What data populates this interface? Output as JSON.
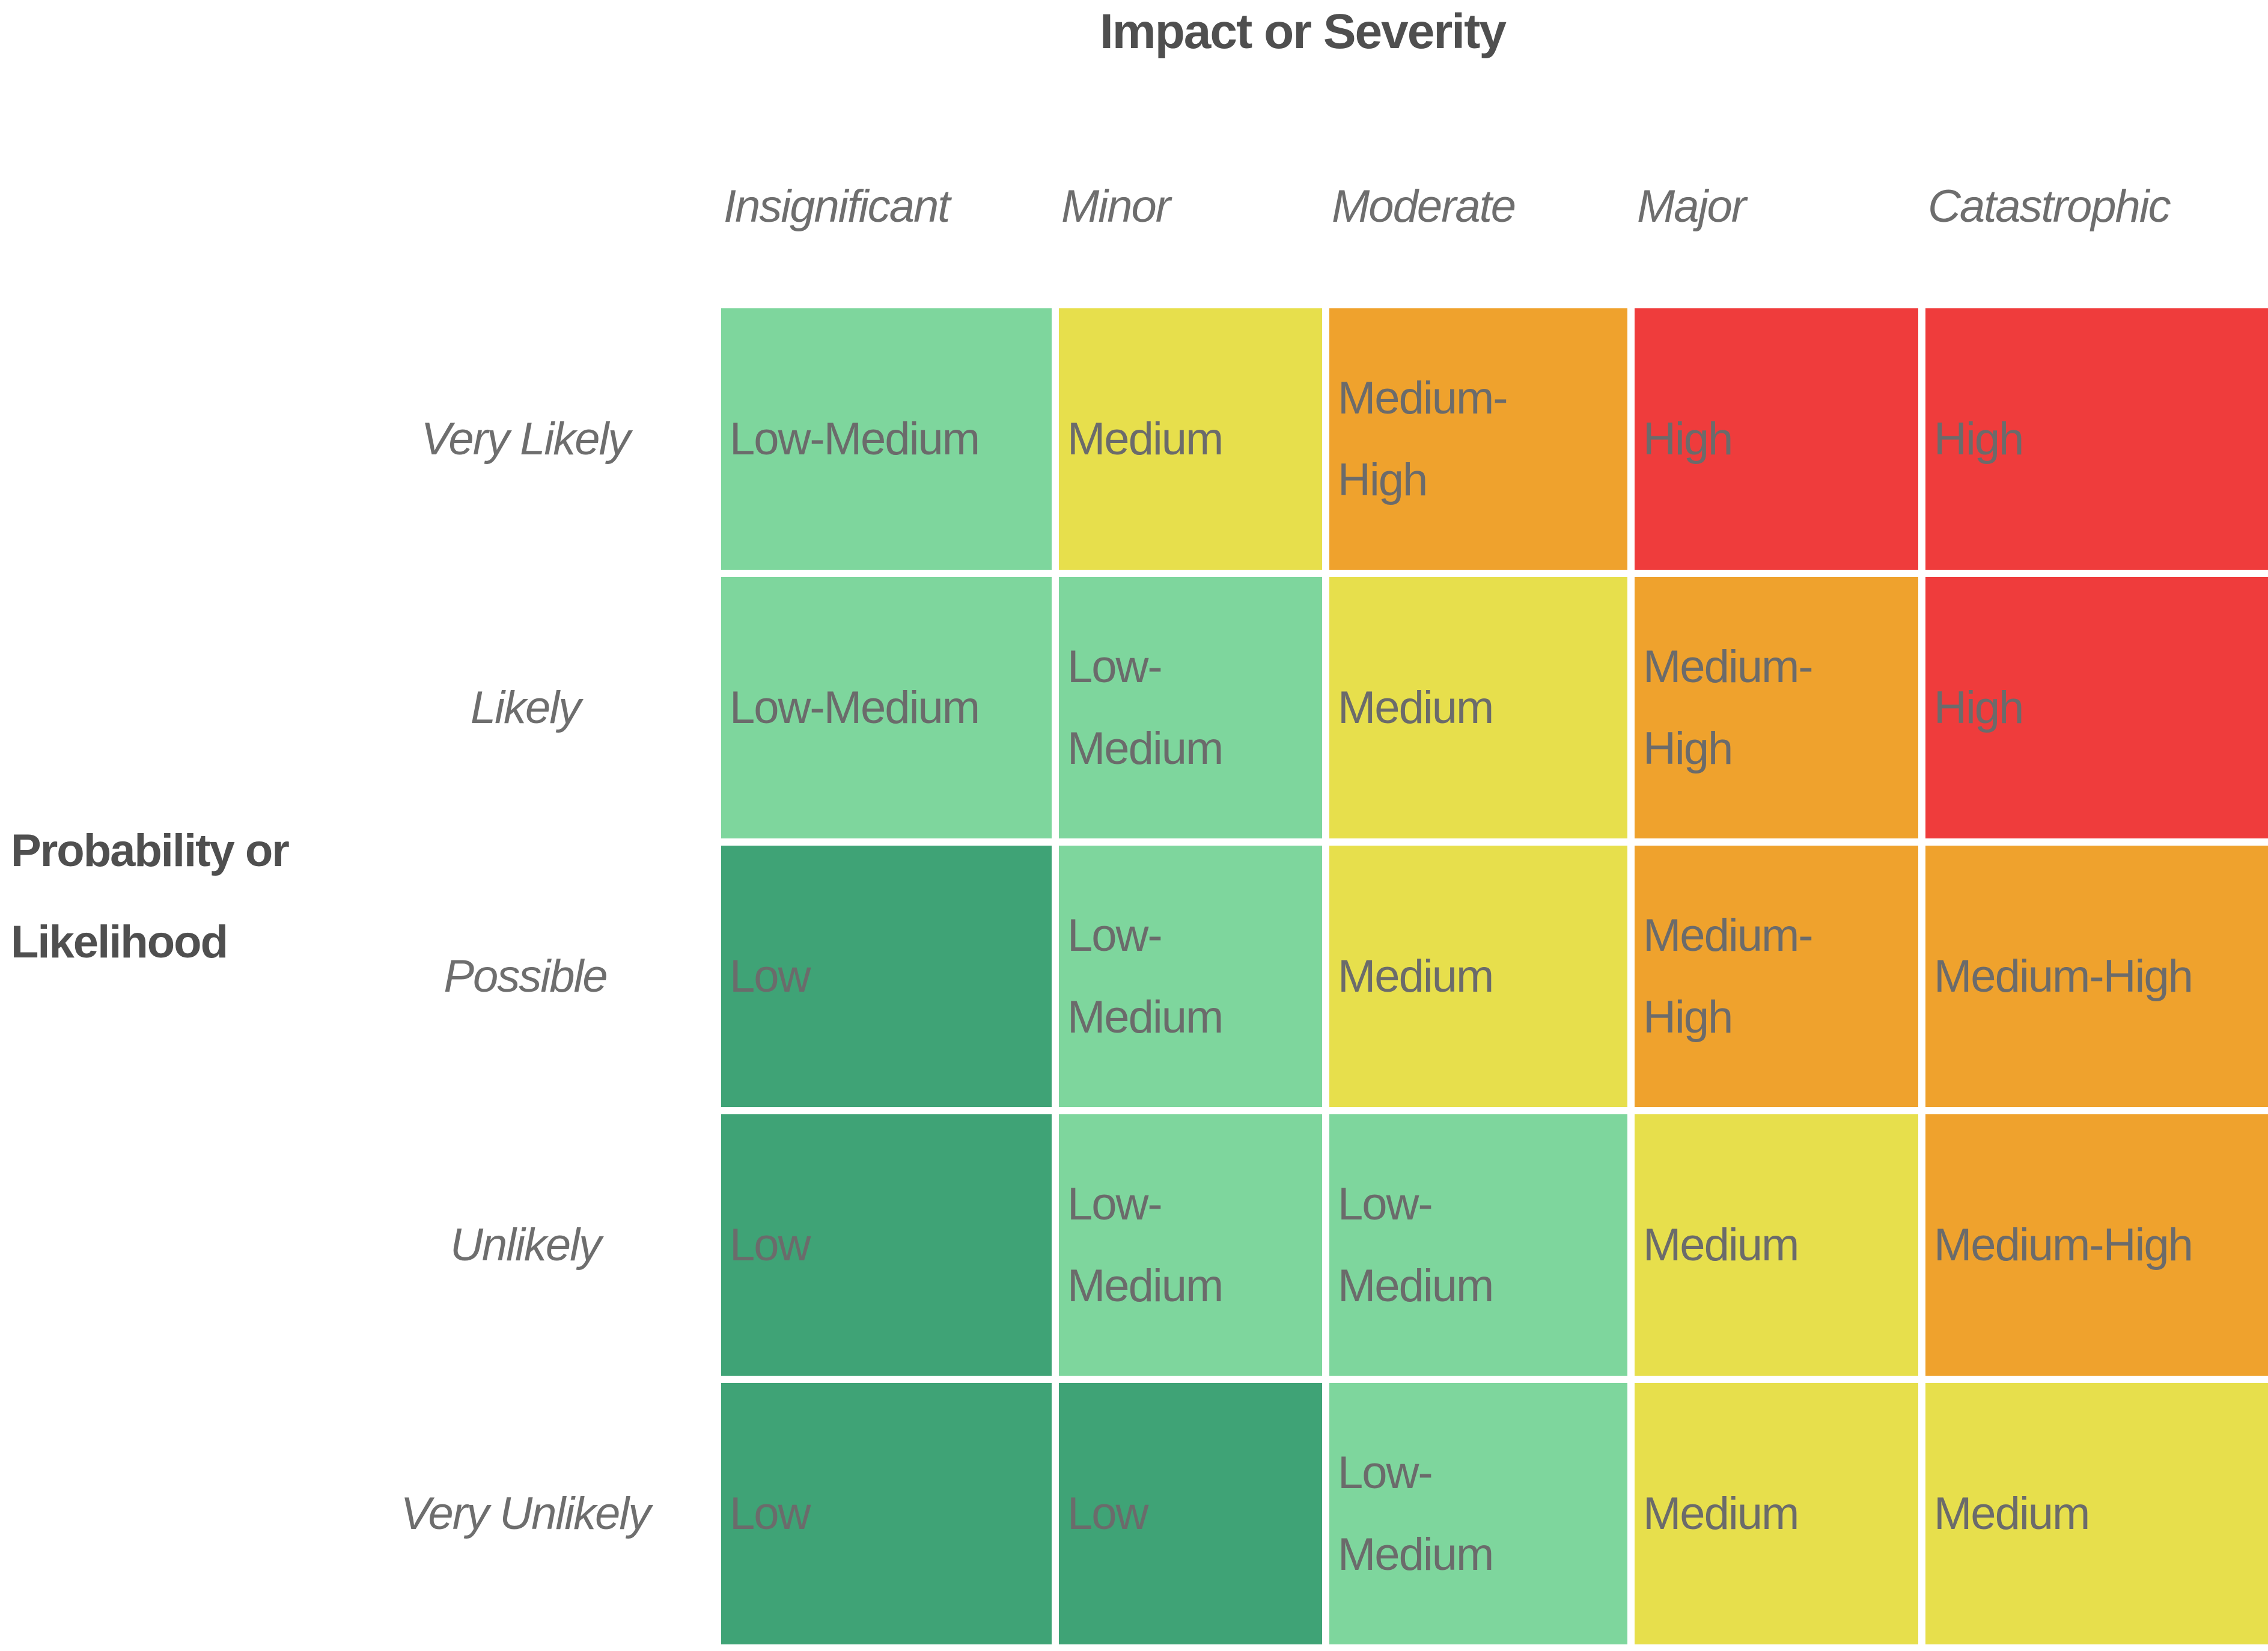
{
  "title": "Impact or Severity",
  "axis_label": "Probability or\nLikelihood",
  "palette": {
    "low": "#3FA376",
    "low-medium": "#7ED69D",
    "medium": "#E7DF4C",
    "medium-high": "#EFA22D",
    "high": "#EF3C3C"
  },
  "text_colors": {
    "cell_text": "#6B6B6B",
    "headings": "#4F4F4F",
    "axis_tick_labels": "#6E6E6E",
    "background": "#FFFFFF"
  },
  "columns": [
    "Insignificant",
    "Minor",
    "Moderate",
    "Major",
    "Catastrophic"
  ],
  "rows": [
    "Very Likely",
    "Likely",
    "Possible",
    "Unlikely",
    "Very Unlikely"
  ],
  "grid": {
    "rows": [
      {
        "label": "Very Likely",
        "cells": [
          {
            "label": "Low-Medium",
            "level": "low-medium"
          },
          {
            "label": "Medium",
            "level": "medium"
          },
          {
            "label": "Medium-\nHigh",
            "level": "medium-high"
          },
          {
            "label": "High",
            "level": "high"
          },
          {
            "label": "High",
            "level": "high"
          }
        ]
      },
      {
        "label": "Likely",
        "cells": [
          {
            "label": "Low-Medium",
            "level": "low-medium"
          },
          {
            "label": "Low-\nMedium",
            "level": "low-medium"
          },
          {
            "label": "Medium",
            "level": "medium"
          },
          {
            "label": "Medium-\nHigh",
            "level": "medium-high"
          },
          {
            "label": "High",
            "level": "high"
          }
        ]
      },
      {
        "label": "Possible",
        "cells": [
          {
            "label": "Low",
            "level": "low"
          },
          {
            "label": "Low-\nMedium",
            "level": "low-medium"
          },
          {
            "label": "Medium",
            "level": "medium"
          },
          {
            "label": "Medium-\nHigh",
            "level": "medium-high"
          },
          {
            "label": "Medium-High",
            "level": "medium-high"
          }
        ]
      },
      {
        "label": "Unlikely",
        "cells": [
          {
            "label": "Low",
            "level": "low"
          },
          {
            "label": "Low-\nMedium",
            "level": "low-medium"
          },
          {
            "label": "Low-\nMedium",
            "level": "low-medium"
          },
          {
            "label": "Medium",
            "level": "medium"
          },
          {
            "label": "Medium-High",
            "level": "medium-high"
          }
        ]
      },
      {
        "label": "Very Unlikely",
        "cells": [
          {
            "label": "Low",
            "level": "low"
          },
          {
            "label": "Low",
            "level": "low"
          },
          {
            "label": "Low-\nMedium",
            "level": "low-medium"
          },
          {
            "label": "Medium",
            "level": "medium"
          },
          {
            "label": "Medium",
            "level": "medium"
          }
        ]
      }
    ]
  },
  "chart_data": {
    "type": "heatmap",
    "title": "Impact or Severity",
    "xlabel": "Impact or Severity",
    "ylabel": "Probability or Likelihood",
    "x_categories": [
      "Insignificant",
      "Minor",
      "Moderate",
      "Major",
      "Catastrophic"
    ],
    "y_categories": [
      "Very Likely",
      "Likely",
      "Possible",
      "Unlikely",
      "Very Unlikely"
    ],
    "values": [
      [
        "Low-Medium",
        "Medium",
        "Medium-High",
        "High",
        "High"
      ],
      [
        "Low-Medium",
        "Low-Medium",
        "Medium",
        "Medium-High",
        "High"
      ],
      [
        "Low",
        "Low-Medium",
        "Medium",
        "Medium-High",
        "Medium-High"
      ],
      [
        "Low",
        "Low-Medium",
        "Low-Medium",
        "Medium",
        "Medium-High"
      ],
      [
        "Low",
        "Low",
        "Low-Medium",
        "Medium",
        "Medium"
      ]
    ],
    "value_color_scale": {
      "Low": "#3FA376",
      "Low-Medium": "#7ED69D",
      "Medium": "#E7DF4C",
      "Medium-High": "#EFA22D",
      "High": "#EF3C3C"
    },
    "legend_position": "none",
    "grid": "white 12px gaps between cells"
  }
}
